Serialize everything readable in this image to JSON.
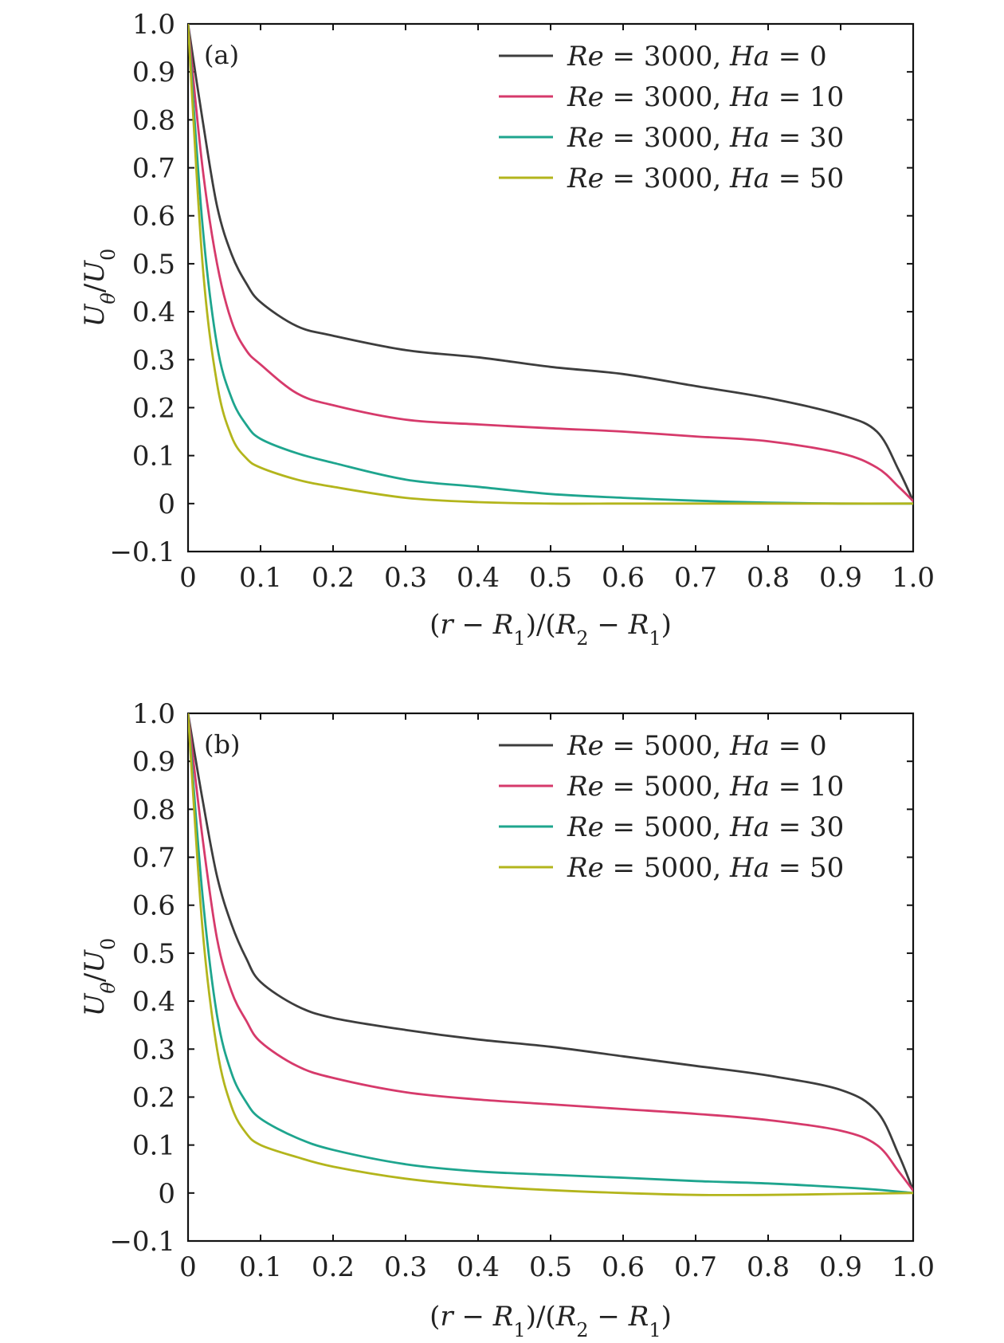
{
  "chart_data": [
    {
      "type": "line",
      "panel_label": "(a)",
      "xlabel": "(r − R₁)/(R₂ − R₁)",
      "ylabel": "U_θ/U₀",
      "xlim": [
        0,
        1.0
      ],
      "ylim": [
        -0.1,
        1.0
      ],
      "xticks": [
        0,
        0.1,
        0.2,
        0.3,
        0.4,
        0.5,
        0.6,
        0.7,
        0.8,
        0.9,
        1.0
      ],
      "xtick_labels": [
        "0",
        "0.1",
        "0.2",
        "0.3",
        "0.4",
        "0.5",
        "0.6",
        "0.7",
        "0.8",
        "0.9",
        "1.0"
      ],
      "yticks": [
        -0.1,
        0,
        0.1,
        0.2,
        0.3,
        0.4,
        0.5,
        0.6,
        0.7,
        0.8,
        0.9,
        1.0
      ],
      "ytick_labels": [
        "−0.1",
        "0",
        "0.1",
        "0.2",
        "0.3",
        "0.4",
        "0.5",
        "0.6",
        "0.7",
        "0.8",
        "0.9",
        "1.0"
      ],
      "legend_position": "top-right",
      "grid": false,
      "series": [
        {
          "name": "Re = 3000, Ha = 0",
          "color": "#3d3d3d",
          "x": [
            0,
            0.02,
            0.04,
            0.06,
            0.08,
            0.1,
            0.15,
            0.2,
            0.3,
            0.4,
            0.5,
            0.6,
            0.7,
            0.8,
            0.9,
            0.95,
            0.98,
            1.0
          ],
          "y": [
            1.0,
            0.8,
            0.62,
            0.52,
            0.46,
            0.42,
            0.37,
            0.35,
            0.32,
            0.305,
            0.285,
            0.27,
            0.245,
            0.22,
            0.185,
            0.15,
            0.07,
            0.005
          ]
        },
        {
          "name": "Re = 3000, Ha = 10",
          "color": "#d63a6b",
          "x": [
            0,
            0.02,
            0.04,
            0.06,
            0.08,
            0.1,
            0.15,
            0.2,
            0.3,
            0.4,
            0.5,
            0.6,
            0.7,
            0.8,
            0.9,
            0.95,
            0.98,
            1.0
          ],
          "y": [
            1.0,
            0.7,
            0.5,
            0.38,
            0.32,
            0.29,
            0.23,
            0.205,
            0.175,
            0.165,
            0.157,
            0.15,
            0.14,
            0.13,
            0.105,
            0.075,
            0.035,
            0.005
          ]
        },
        {
          "name": "Re = 3000, Ha = 30",
          "color": "#1ea58e",
          "x": [
            0,
            0.02,
            0.04,
            0.06,
            0.08,
            0.1,
            0.15,
            0.2,
            0.3,
            0.4,
            0.5,
            0.6,
            0.7,
            0.8,
            0.9,
            1.0
          ],
          "y": [
            1.0,
            0.58,
            0.33,
            0.22,
            0.165,
            0.135,
            0.105,
            0.085,
            0.05,
            0.035,
            0.02,
            0.012,
            0.006,
            0.002,
            0.0,
            0.0
          ]
        },
        {
          "name": "Re = 3000, Ha = 50",
          "color": "#b3b51c",
          "x": [
            0,
            0.02,
            0.04,
            0.06,
            0.08,
            0.1,
            0.15,
            0.2,
            0.3,
            0.4,
            0.5,
            0.6,
            0.7,
            0.8,
            0.9,
            1.0
          ],
          "y": [
            1.0,
            0.5,
            0.25,
            0.14,
            0.095,
            0.075,
            0.05,
            0.035,
            0.012,
            0.003,
            0.0,
            0.0,
            0.0,
            0.0,
            0.0,
            0.0
          ]
        }
      ]
    },
    {
      "type": "line",
      "panel_label": "(b)",
      "xlabel": "(r − R₁)/(R₂ − R₁)",
      "ylabel": "U_θ/U₀",
      "xlim": [
        0,
        1.0
      ],
      "ylim": [
        -0.1,
        1.0
      ],
      "xticks": [
        0,
        0.1,
        0.2,
        0.3,
        0.4,
        0.5,
        0.6,
        0.7,
        0.8,
        0.9,
        1.0
      ],
      "xtick_labels": [
        "0",
        "0.1",
        "0.2",
        "0.3",
        "0.4",
        "0.5",
        "0.6",
        "0.7",
        "0.8",
        "0.9",
        "1.0"
      ],
      "yticks": [
        -0.1,
        0,
        0.1,
        0.2,
        0.3,
        0.4,
        0.5,
        0.6,
        0.7,
        0.8,
        0.9,
        1.0
      ],
      "ytick_labels": [
        "−0.1",
        "0",
        "0.1",
        "0.2",
        "0.3",
        "0.4",
        "0.5",
        "0.6",
        "0.7",
        "0.8",
        "0.9",
        "1.0"
      ],
      "legend_position": "top-right",
      "grid": false,
      "series": [
        {
          "name": "Re = 5000, Ha = 0",
          "color": "#3d3d3d",
          "x": [
            0,
            0.02,
            0.04,
            0.06,
            0.08,
            0.1,
            0.15,
            0.2,
            0.3,
            0.4,
            0.5,
            0.6,
            0.7,
            0.8,
            0.9,
            0.95,
            0.98,
            1.0
          ],
          "y": [
            1.0,
            0.82,
            0.66,
            0.56,
            0.49,
            0.44,
            0.39,
            0.365,
            0.34,
            0.32,
            0.305,
            0.285,
            0.265,
            0.245,
            0.215,
            0.17,
            0.08,
            0.005
          ]
        },
        {
          "name": "Re = 5000, Ha = 10",
          "color": "#d63a6b",
          "x": [
            0,
            0.02,
            0.04,
            0.06,
            0.08,
            0.1,
            0.15,
            0.2,
            0.3,
            0.4,
            0.5,
            0.6,
            0.7,
            0.8,
            0.9,
            0.95,
            0.98,
            1.0
          ],
          "y": [
            1.0,
            0.74,
            0.53,
            0.42,
            0.36,
            0.315,
            0.265,
            0.24,
            0.21,
            0.195,
            0.185,
            0.175,
            0.165,
            0.152,
            0.13,
            0.1,
            0.045,
            0.005
          ]
        },
        {
          "name": "Re = 5000, Ha = 30",
          "color": "#1ea58e",
          "x": [
            0,
            0.02,
            0.04,
            0.06,
            0.08,
            0.1,
            0.15,
            0.2,
            0.3,
            0.4,
            0.5,
            0.6,
            0.7,
            0.8,
            0.9,
            0.95,
            1.0
          ],
          "y": [
            1.0,
            0.62,
            0.37,
            0.25,
            0.19,
            0.155,
            0.115,
            0.09,
            0.06,
            0.045,
            0.038,
            0.032,
            0.025,
            0.02,
            0.012,
            0.007,
            0.0
          ]
        },
        {
          "name": "Re = 5000, Ha = 50",
          "color": "#b3b51c",
          "x": [
            0,
            0.02,
            0.04,
            0.06,
            0.08,
            0.1,
            0.15,
            0.2,
            0.3,
            0.4,
            0.5,
            0.6,
            0.7,
            0.8,
            0.9,
            1.0
          ],
          "y": [
            1.0,
            0.55,
            0.3,
            0.18,
            0.125,
            0.1,
            0.075,
            0.055,
            0.03,
            0.015,
            0.006,
            0.0,
            -0.004,
            -0.004,
            -0.002,
            0.0
          ]
        }
      ]
    }
  ]
}
